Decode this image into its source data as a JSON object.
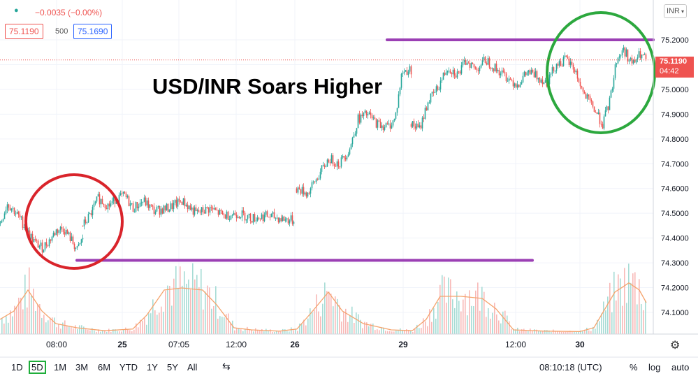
{
  "header": {
    "change": "−0.0035 (−0.00%)",
    "bid": "75.1190",
    "spread": "500",
    "ask": "75.1690",
    "currency": "INR"
  },
  "title": "USD/INR Soars Higher",
  "last_price": {
    "value": "75.1190",
    "countdown": "04:42"
  },
  "colors": {
    "up": "#26a69a",
    "down": "#ef5350",
    "volume_ma": "#f5a36c",
    "resistance": "#9b3fb4",
    "circle_red": "#d9242b",
    "circle_green": "#2ca83e"
  },
  "toolbar": {
    "ranges": [
      "1D",
      "5D",
      "1M",
      "3M",
      "6M",
      "YTD",
      "1Y",
      "5Y",
      "All"
    ],
    "active_range": "5D",
    "clock": "08:10:18 (UTC)",
    "percent": "%",
    "log": "log",
    "auto": "auto"
  },
  "chart_data": {
    "type": "candlestick",
    "ylabel": "",
    "y_ticks": [
      "74.1000",
      "74.2000",
      "74.3000",
      "74.4000",
      "74.5000",
      "74.6000",
      "74.7000",
      "74.8000",
      "74.9000",
      "75.0000",
      "75.1000",
      "75.2000"
    ],
    "ylim": [
      74.02,
      75.31
    ],
    "x_ticks": [
      "08:00",
      "25",
      "07:05",
      "12:00",
      "26",
      "29",
      "12:00",
      "30"
    ],
    "grid": true,
    "segments": [
      {
        "label": "day1",
        "points": [
          [
            0,
            74.46
          ],
          [
            10,
            74.54
          ],
          [
            20,
            74.51
          ],
          [
            30,
            74.47
          ],
          [
            40,
            74.42
          ],
          [
            50,
            74.38
          ],
          [
            60,
            74.36
          ],
          [
            70,
            74.39
          ],
          [
            80,
            74.43
          ],
          [
            90,
            74.44
          ],
          [
            100,
            74.4
          ],
          [
            110,
            74.35
          ],
          [
            118,
            74.4
          ]
        ]
      },
      {
        "label": "day2",
        "points": [
          [
            118,
            74.45
          ],
          [
            128,
            74.49
          ],
          [
            140,
            74.56
          ],
          [
            155,
            74.53
          ],
          [
            165,
            74.56
          ],
          [
            178,
            74.57
          ],
          [
            190,
            74.52
          ],
          [
            205,
            74.55
          ],
          [
            220,
            74.51
          ],
          [
            240,
            74.52
          ],
          [
            260,
            74.55
          ],
          [
            280,
            74.5
          ],
          [
            300,
            74.52
          ],
          [
            320,
            74.49
          ],
          [
            340,
            74.5
          ],
          [
            360,
            74.48
          ],
          [
            380,
            74.49
          ],
          [
            400,
            74.48
          ],
          [
            420,
            74.47
          ]
        ]
      },
      {
        "label": "day3",
        "points": [
          [
            424,
            74.6
          ],
          [
            440,
            74.58
          ],
          [
            455,
            74.65
          ],
          [
            470,
            74.72
          ],
          [
            485,
            74.7
          ],
          [
            500,
            74.76
          ],
          [
            512,
            74.88
          ],
          [
            525,
            74.9
          ],
          [
            540,
            74.86
          ],
          [
            555,
            74.85
          ],
          [
            565,
            74.88
          ],
          [
            575,
            75.07
          ],
          [
            588,
            75.08
          ]
        ]
      },
      {
        "label": "day4",
        "points": [
          [
            588,
            74.86
          ],
          [
            600,
            74.84
          ],
          [
            612,
            74.95
          ],
          [
            625,
            75.0
          ],
          [
            640,
            75.09
          ],
          [
            655,
            75.06
          ],
          [
            668,
            75.12
          ],
          [
            680,
            75.08
          ],
          [
            695,
            75.12
          ],
          [
            710,
            75.08
          ],
          [
            725,
            75.05
          ],
          [
            740,
            75.02
          ],
          [
            755,
            75.07
          ],
          [
            770,
            75.05
          ],
          [
            782,
            75.03
          ]
        ]
      },
      {
        "label": "day5",
        "points": [
          [
            782,
            75.03
          ],
          [
            795,
            75.1
          ],
          [
            810,
            75.12
          ],
          [
            822,
            75.08
          ],
          [
            835,
            74.98
          ],
          [
            848,
            74.93
          ],
          [
            862,
            74.86
          ],
          [
            872,
            74.95
          ],
          [
            882,
            75.12
          ],
          [
            892,
            75.16
          ],
          [
            905,
            75.1
          ],
          [
            915,
            75.14
          ],
          [
            925,
            75.12
          ]
        ]
      }
    ],
    "volume": {
      "ma": [
        [
          0,
          0.35
        ],
        [
          20,
          0.55
        ],
        [
          40,
          1.05
        ],
        [
          60,
          0.55
        ],
        [
          80,
          0.25
        ],
        [
          110,
          0.15
        ],
        [
          150,
          0.08
        ],
        [
          190,
          0.12
        ],
        [
          210,
          0.45
        ],
        [
          235,
          1.05
        ],
        [
          260,
          1.1
        ],
        [
          290,
          1.05
        ],
        [
          310,
          0.7
        ],
        [
          335,
          0.15
        ],
        [
          360,
          0.1
        ],
        [
          400,
          0.07
        ],
        [
          425,
          0.12
        ],
        [
          445,
          0.5
        ],
        [
          470,
          1.0
        ],
        [
          490,
          0.55
        ],
        [
          520,
          0.25
        ],
        [
          560,
          0.1
        ],
        [
          590,
          0.08
        ],
        [
          610,
          0.35
        ],
        [
          630,
          0.9
        ],
        [
          660,
          0.9
        ],
        [
          690,
          0.85
        ],
        [
          710,
          0.6
        ],
        [
          735,
          0.1
        ],
        [
          780,
          0.07
        ],
        [
          830,
          0.06
        ],
        [
          850,
          0.15
        ],
        [
          880,
          1.0
        ],
        [
          900,
          1.22
        ],
        [
          915,
          1.05
        ],
        [
          925,
          0.75
        ]
      ]
    }
  },
  "annotations": {
    "resistance_y": 75.2,
    "support_y": 74.31
  }
}
